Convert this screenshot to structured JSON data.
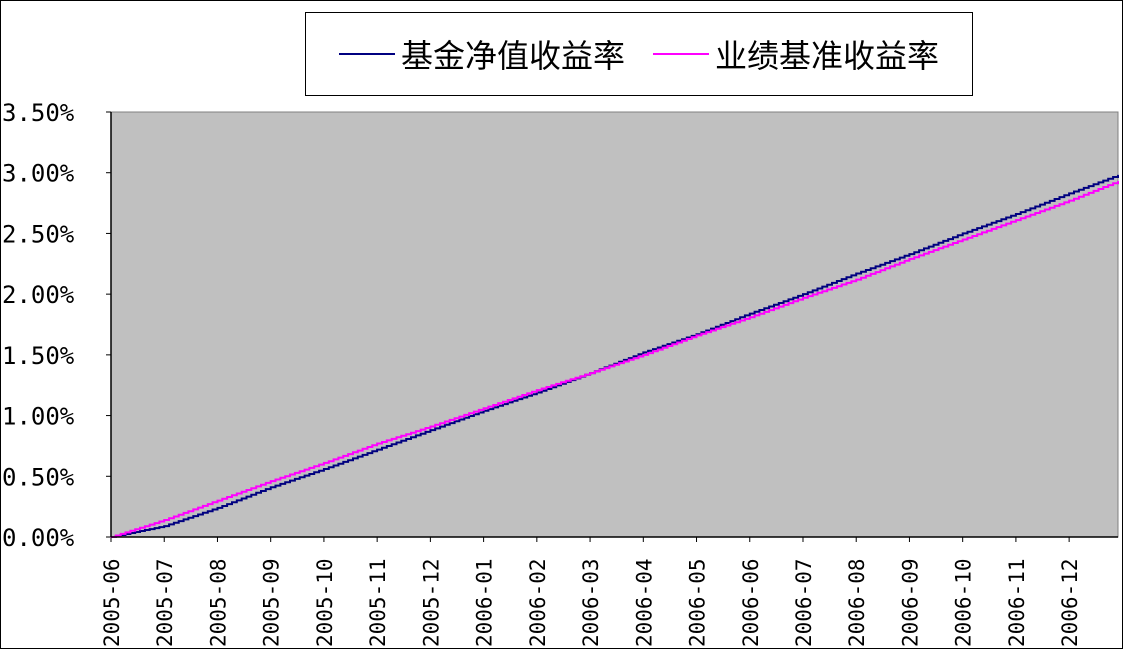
{
  "chart_data": {
    "type": "line",
    "title": "",
    "xlabel": "",
    "ylabel": "",
    "x_range": [
      "2005-06",
      "2006-12"
    ],
    "ylim": [
      0,
      3.5
    ],
    "y_unit": "%",
    "y_ticks": [
      "0.00%",
      "0.50%",
      "1.00%",
      "1.50%",
      "2.00%",
      "2.50%",
      "3.00%",
      "3.50%"
    ],
    "x_ticks": [
      "2005-06",
      "2005-07",
      "2005-08",
      "2005-09",
      "2005-10",
      "2005-11",
      "2005-12",
      "2006-01",
      "2006-02",
      "2006-03",
      "2006-04",
      "2006-05",
      "2006-06",
      "2006-07",
      "2006-08",
      "2006-09",
      "2006-10",
      "2006-11",
      "2006-12"
    ],
    "grid": false,
    "legend_position": "top",
    "plot_background": "#c0c0c0",
    "series": [
      {
        "name": "基金净值收益率",
        "color": "#000080",
        "x": [
          "2005-06",
          "2005-07",
          "2005-08",
          "2005-09",
          "2005-10",
          "2005-11",
          "2005-12",
          "2006-01",
          "2006-02",
          "2006-03",
          "2006-04",
          "2006-05",
          "2006-06",
          "2006-07",
          "2006-08",
          "2006-09",
          "2006-10",
          "2006-11",
          "2006-12",
          "2006-12-29"
        ],
        "values": [
          0.0,
          0.09,
          0.24,
          0.41,
          0.56,
          0.72,
          0.88,
          1.04,
          1.19,
          1.35,
          1.52,
          1.67,
          1.84,
          2.0,
          2.17,
          2.33,
          2.5,
          2.66,
          2.83,
          2.98
        ]
      },
      {
        "name": "业绩基准收益率",
        "color": "#ff00ff",
        "x": [
          "2005-06",
          "2005-07",
          "2005-08",
          "2005-09",
          "2005-10",
          "2005-11",
          "2005-12",
          "2006-01",
          "2006-02",
          "2006-03",
          "2006-04",
          "2006-05",
          "2006-06",
          "2006-07",
          "2006-08",
          "2006-09",
          "2006-10",
          "2006-11",
          "2006-12",
          "2006-12-29"
        ],
        "values": [
          0.0,
          0.14,
          0.3,
          0.46,
          0.61,
          0.77,
          0.91,
          1.06,
          1.21,
          1.35,
          1.5,
          1.66,
          1.81,
          1.97,
          2.12,
          2.29,
          2.45,
          2.61,
          2.77,
          2.93
        ]
      }
    ]
  }
}
